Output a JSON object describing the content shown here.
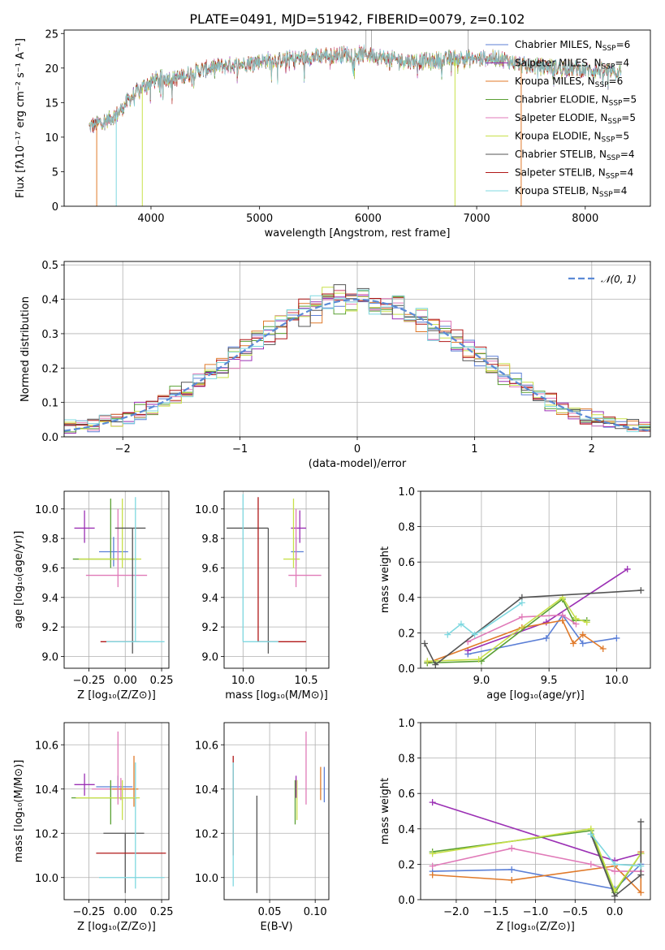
{
  "figure_title": "PLATE=0491, MJD=51942, FIBERID=0079, z=0.102",
  "colors": {
    "chabrier_miles": "#5b7fd6",
    "salpeter_miles": "#9b30b4",
    "kroupa_miles": "#e07a2a",
    "chabrier_elodie": "#5aa033",
    "salpeter_elodie": "#e07ab8",
    "kroupa_elodie": "#c8e04a",
    "chabrier_stelib": "#555555",
    "salpeter_stelib": "#b01818",
    "kroupa_stelib": "#7fd8e0",
    "grid": "#b0b0b0",
    "normal": "#5b8ad6"
  },
  "chart_data": [
    {
      "id": "spectrum",
      "type": "line",
      "title": "PLATE=0491, MJD=51942, FIBERID=0079, z=0.102",
      "xlabel": "wavelength [Angstrom, rest frame]",
      "ylabel": "Flux [fλ10⁻¹⁷ erg cm⁻² s⁻¹ A⁻¹]",
      "xlim": [
        3200,
        8600
      ],
      "ylim": [
        0,
        25.5
      ],
      "xticks": [
        4000,
        5000,
        6000,
        7000,
        8000
      ],
      "yticks": [
        0,
        5,
        10,
        15,
        20,
        25
      ],
      "grid": false,
      "legend_position": "right",
      "legend": [
        {
          "label": "Chabrier MILES, N",
          "sub": "SSP",
          "eq": "=6",
          "color_key": "chabrier_miles"
        },
        {
          "label": "Salpeter MILES, N",
          "sub": "SSP",
          "eq": "=4",
          "color_key": "salpeter_miles"
        },
        {
          "label": "Kroupa MILES, N",
          "sub": "SSP",
          "eq": "=6",
          "color_key": "kroupa_miles"
        },
        {
          "label": "Chabrier ELODIE, N",
          "sub": "SSP",
          "eq": "=5",
          "color_key": "chabrier_elodie"
        },
        {
          "label": "Salpeter ELODIE, N",
          "sub": "SSP",
          "eq": "=5",
          "color_key": "salpeter_elodie"
        },
        {
          "label": "Kroupa ELODIE, N",
          "sub": "SSP",
          "eq": "=5",
          "color_key": "kroupa_elodie"
        },
        {
          "label": "Chabrier STELIB, N",
          "sub": "SSP",
          "eq": "=4",
          "color_key": "chabrier_stelib"
        },
        {
          "label": "Salpeter STELIB, N",
          "sub": "SSP",
          "eq": "=4",
          "color_key": "salpeter_stelib"
        },
        {
          "label": "Kroupa STELIB, N",
          "sub": "SSP",
          "eq": "=4",
          "color_key": "kroupa_stelib"
        }
      ],
      "continuum": {
        "x": [
          3430,
          3600,
          3700,
          3800,
          3900,
          4000,
          4100,
          4200,
          4300,
          4400,
          4600,
          4800,
          5000,
          5200,
          5400,
          5600,
          5800,
          6000,
          6200,
          6400,
          6600,
          6800,
          7000,
          7200,
          7400,
          7600,
          7800,
          8000,
          8200,
          8330
        ],
        "y": [
          11.5,
          12.5,
          13.5,
          15.5,
          17.0,
          18.0,
          18.5,
          18.5,
          18.8,
          19.5,
          20.2,
          20.5,
          21.0,
          21.2,
          21.5,
          21.8,
          22.0,
          22.0,
          21.3,
          21.0,
          21.0,
          21.5,
          21.3,
          21.5,
          20.5,
          20.2,
          20.0,
          19.8,
          19.5,
          19.3
        ]
      },
      "dips": [
        {
          "x": 3680,
          "y": 0,
          "color_key": "kroupa_stelib"
        },
        {
          "x": 3500,
          "y": 0,
          "color_key": "kroupa_miles"
        },
        {
          "x": 3920,
          "y": 0,
          "color_key": "kroupa_elodie"
        },
        {
          "x": 6800,
          "y": 0,
          "color_key": "kroupa_elodie"
        },
        {
          "x": 7410,
          "y": 0,
          "color_key": "kroupa_miles"
        }
      ]
    },
    {
      "id": "residuals",
      "type": "histogram",
      "xlabel": "(data-model)/error",
      "ylabel": "Normed distribution",
      "xlim": [
        -2.5,
        2.5
      ],
      "ylim": [
        0,
        0.51
      ],
      "xticks": [
        -2,
        -1,
        0,
        1,
        2
      ],
      "yticks": [
        0.0,
        0.1,
        0.2,
        0.3,
        0.4,
        0.5
      ],
      "grid": true,
      "legend_position": "top-right",
      "normal_label": "𝒩(0, 1)",
      "bin_width": 0.1,
      "bins_start": -2.5
    },
    {
      "id": "age_vs_Z",
      "type": "errorbar",
      "xlabel_main": "Z [log",
      "xlabel_sub": "10",
      "xlabel_rest": "(Z/Z",
      "xlabel_end": ")]",
      "ylabel": "age  [log₁₀(age/yr)]",
      "xlim": [
        -0.42,
        0.3
      ],
      "ylim": [
        8.92,
        10.12
      ],
      "xticks": [
        -0.25,
        0.0,
        0.25
      ],
      "yticks": [
        9.0,
        9.2,
        9.4,
        9.6,
        9.8,
        10.0
      ],
      "grid": true,
      "points": [
        {
          "x": -0.28,
          "xerr": [
            0.07,
            0.07
          ],
          "y": 9.87,
          "yerr": [
            0.1,
            0.12
          ],
          "color_key": "salpeter_miles"
        },
        {
          "x": -0.08,
          "xerr": [
            0.1,
            0.1
          ],
          "y": 9.71,
          "yerr": [
            0.1,
            0.1
          ],
          "color_key": "chabrier_miles"
        },
        {
          "x": 0.05,
          "xerr": [
            0.22,
            0.05
          ],
          "y": 9.1,
          "yerr": [
            0.0,
            0.0
          ],
          "color_key": "salpeter_stelib"
        },
        {
          "x": -0.1,
          "xerr": [
            0.26,
            0.18
          ],
          "y": 9.66,
          "yerr": [
            0.06,
            0.41
          ],
          "color_key": "chabrier_elodie"
        },
        {
          "x": -0.02,
          "xerr": [
            0.3,
            0.13
          ],
          "y": 9.66,
          "yerr": [
            0.06,
            0.41
          ],
          "color_key": "kroupa_elodie"
        },
        {
          "x": -0.05,
          "xerr": [
            0.22,
            0.2
          ],
          "y": 9.55,
          "yerr": [
            0.08,
            0.45
          ],
          "color_key": "salpeter_elodie"
        },
        {
          "x": 0.05,
          "xerr": [
            0.12,
            0.09
          ],
          "y": 9.87,
          "yerr": [
            0.85,
            0.0
          ],
          "color_key": "chabrier_stelib"
        },
        {
          "x": 0.07,
          "xerr": [
            0.2,
            0.2
          ],
          "y": 9.1,
          "yerr": [
            0.0,
            0.98
          ],
          "color_key": "kroupa_stelib"
        }
      ]
    },
    {
      "id": "age_vs_mass",
      "type": "errorbar",
      "xlabel": "mass [log₁₀(M/M⊙)]",
      "xlim": [
        9.85,
        10.68
      ],
      "ylim": [
        8.92,
        10.12
      ],
      "xticks": [
        10.0,
        10.5
      ],
      "yticks": [
        9.0,
        9.2,
        9.4,
        9.6,
        9.8,
        10.0
      ],
      "grid": true,
      "points": [
        {
          "x": 10.45,
          "xerr": [
            0.07,
            0.05
          ],
          "y": 9.87,
          "yerr": [
            0.1,
            0.12
          ],
          "color_key": "salpeter_miles"
        },
        {
          "x": 10.42,
          "xerr": [
            0.04,
            0.06
          ],
          "y": 9.71,
          "yerr": [
            0.1,
            0.1
          ],
          "color_key": "chabrier_miles"
        },
        {
          "x": 10.4,
          "xerr": [
            0.08,
            0.05
          ],
          "y": 9.66,
          "yerr": [
            0.06,
            0.41
          ],
          "color_key": "kroupa_elodie"
        },
        {
          "x": 10.42,
          "xerr": [
            0.06,
            0.2
          ],
          "y": 9.55,
          "yerr": [
            0.08,
            0.45
          ],
          "color_key": "salpeter_elodie"
        },
        {
          "x": 10.2,
          "xerr": [
            0.33,
            0.0
          ],
          "y": 9.87,
          "yerr": [
            0.85,
            0.0
          ],
          "color_key": "chabrier_stelib"
        },
        {
          "x": 10.4,
          "xerr": [
            0.28,
            0.1
          ],
          "y": 9.1,
          "yerr": [
            0.0,
            0.0
          ],
          "color_key": "salpeter_stelib"
        },
        {
          "x": 10.12,
          "xerr": [
            0.0,
            0.0
          ],
          "y": 9.1,
          "yerr": [
            0.0,
            0.98
          ],
          "color_key": "salpeter_stelib"
        },
        {
          "x": 10.0,
          "xerr": [
            0.0,
            0.28
          ],
          "y": 9.1,
          "yerr": [
            0.0,
            1.0
          ],
          "color_key": "kroupa_stelib"
        }
      ]
    },
    {
      "id": "mass_weight_vs_age",
      "type": "line",
      "xlabel": "age  [log₁₀(age/yr)]",
      "ylabel": "mass weight",
      "xlim": [
        8.55,
        10.25
      ],
      "ylim": [
        0,
        1.0
      ],
      "xticks": [
        9.0,
        9.5,
        10.0
      ],
      "yticks": [
        0.0,
        0.2,
        0.4,
        0.6,
        0.8,
        1.0
      ],
      "grid": true,
      "series": [
        {
          "color_key": "chabrier_miles",
          "x": [
            8.9,
            9.48,
            9.6,
            9.75,
            10.0
          ],
          "y": [
            0.08,
            0.17,
            0.3,
            0.14,
            0.17
          ]
        },
        {
          "color_key": "salpeter_miles",
          "x": [
            8.9,
            9.48,
            10.08
          ],
          "y": [
            0.1,
            0.26,
            0.56
          ]
        },
        {
          "color_key": "kroupa_miles",
          "x": [
            8.6,
            9.3,
            9.6,
            9.68,
            9.75,
            9.9
          ],
          "y": [
            0.03,
            0.23,
            0.27,
            0.14,
            0.19,
            0.11
          ]
        },
        {
          "color_key": "chabrier_elodie",
          "x": [
            8.6,
            9.0,
            9.6,
            9.68,
            9.78
          ],
          "y": [
            0.03,
            0.04,
            0.39,
            0.27,
            0.27
          ]
        },
        {
          "color_key": "salpeter_elodie",
          "x": [
            8.9,
            9.3,
            9.6,
            9.7
          ],
          "y": [
            0.15,
            0.29,
            0.3,
            0.25
          ]
        },
        {
          "color_key": "kroupa_elodie",
          "x": [
            8.6,
            8.98,
            9.6,
            9.7,
            9.78
          ],
          "y": [
            0.04,
            0.05,
            0.4,
            0.28,
            0.26
          ]
        },
        {
          "color_key": "chabrier_stelib",
          "x": [
            8.58,
            8.66,
            9.3,
            10.18
          ],
          "y": [
            0.14,
            0.02,
            0.4,
            0.44
          ]
        },
        {
          "color_key": "kroupa_stelib",
          "x": [
            8.75,
            8.85,
            8.95,
            9.3
          ],
          "y": [
            0.19,
            0.25,
            0.19,
            0.37
          ]
        }
      ]
    },
    {
      "id": "mass_vs_Z",
      "type": "errorbar",
      "xlabel": "Z [log₁₀(Z/Z⊙)]",
      "ylabel": "mass [log₁₀(M/M⊙)]",
      "xlim": [
        -0.42,
        0.3
      ],
      "ylim": [
        9.9,
        10.7
      ],
      "xticks": [
        -0.25,
        0.0,
        0.25
      ],
      "yticks": [
        10.0,
        10.2,
        10.4,
        10.6
      ],
      "grid": true,
      "points": [
        {
          "x": -0.28,
          "xerr": [
            0.07,
            0.07
          ],
          "y": 10.42,
          "yerr": [
            0.05,
            0.05
          ],
          "color_key": "salpeter_miles"
        },
        {
          "x": -0.05,
          "xerr": [
            0.15,
            0.1
          ],
          "y": 10.41,
          "yerr": [
            0.05,
            0.05
          ],
          "color_key": "chabrier_miles"
        },
        {
          "x": -0.03,
          "xerr": [
            0.2,
            0.08
          ],
          "y": 10.4,
          "yerr": [
            0.05,
            0.05
          ],
          "color_key": "salpeter_elodie"
        },
        {
          "x": 0.06,
          "xerr": [
            0.15,
            0.03
          ],
          "y": 10.4,
          "yerr": [
            0.08,
            0.15
          ],
          "color_key": "kroupa_miles"
        },
        {
          "x": -0.1,
          "xerr": [
            0.27,
            0.18
          ],
          "y": 10.36,
          "yerr": [
            0.12,
            0.08
          ],
          "color_key": "chabrier_elodie"
        },
        {
          "x": -0.02,
          "xerr": [
            0.32,
            0.12
          ],
          "y": 10.36,
          "yerr": [
            0.1,
            0.08
          ],
          "color_key": "kroupa_elodie"
        },
        {
          "x": 0.0,
          "xerr": [
            0.15,
            0.13
          ],
          "y": 10.2,
          "yerr": [
            0.27,
            0.0
          ],
          "color_key": "chabrier_stelib"
        },
        {
          "x": 0.1,
          "xerr": [
            0.3,
            0.18
          ],
          "y": 10.11,
          "yerr": [
            0.0,
            0.0
          ],
          "color_key": "salpeter_stelib"
        },
        {
          "x": 0.07,
          "xerr": [
            0.25,
            0.2
          ],
          "y": 10.0,
          "yerr": [
            0.05,
            0.52
          ],
          "color_key": "kroupa_stelib"
        },
        {
          "x": -0.05,
          "xerr": [
            0.0,
            0.0
          ],
          "y": 10.45,
          "yerr": [
            0.12,
            0.21
          ],
          "color_key": "salpeter_elodie"
        }
      ]
    },
    {
      "id": "mass_vs_ebv",
      "type": "errorbar",
      "xlabel": "E(B-V)",
      "xlim": [
        0.0,
        0.115
      ],
      "ylim": [
        9.9,
        10.7
      ],
      "xticks": [
        0.05,
        0.1
      ],
      "yticks": [
        10.0,
        10.2,
        10.4,
        10.6
      ],
      "grid": true,
      "points": [
        {
          "x": 0.01,
          "yerr": [
            0.0,
            0.0
          ],
          "y": 10.35,
          "yerr2": [
            0.25,
            0.2
          ],
          "color_key": "salpeter_stelib"
        },
        {
          "x": 0.01,
          "y": 10.3,
          "yerr2": [
            0.34,
            0.22
          ],
          "color_key": "kroupa_stelib"
        },
        {
          "x": 0.036,
          "y": 10.15,
          "yerr2": [
            0.22,
            0.22
          ],
          "color_key": "chabrier_stelib"
        },
        {
          "x": 0.078,
          "y": 10.36,
          "yerr2": [
            0.12,
            0.08
          ],
          "color_key": "chabrier_elodie"
        },
        {
          "x": 0.08,
          "y": 10.36,
          "yerr2": [
            0.1,
            0.08
          ],
          "color_key": "kroupa_elodie"
        },
        {
          "x": 0.079,
          "y": 10.41,
          "yerr2": [
            0.05,
            0.05
          ],
          "color_key": "salpeter_miles"
        },
        {
          "x": 0.09,
          "y": 10.45,
          "yerr2": [
            0.12,
            0.21
          ],
          "color_key": "salpeter_elodie"
        },
        {
          "x": 0.106,
          "y": 10.4,
          "yerr2": [
            0.05,
            0.1
          ],
          "color_key": "kroupa_miles"
        },
        {
          "x": 0.11,
          "y": 10.42,
          "yerr2": [
            0.08,
            0.08
          ],
          "color_key": "chabrier_miles"
        }
      ]
    },
    {
      "id": "mass_weight_vs_Z",
      "type": "line",
      "xlabel": "Z [log₁₀(Z/Z⊙)]",
      "ylabel": "mass weight",
      "xlim": [
        -2.45,
        0.45
      ],
      "ylim": [
        0,
        1.0
      ],
      "xticks": [
        -2.0,
        -1.5,
        -1.0,
        -0.5,
        0.0
      ],
      "yticks": [
        0.0,
        0.2,
        0.4,
        0.6,
        0.8,
        1.0
      ],
      "grid": true,
      "series": [
        {
          "color_key": "chabrier_miles",
          "x": [
            -2.3,
            -1.3,
            0.0,
            0.33
          ],
          "y": [
            0.16,
            0.17,
            0.06,
            0.2
          ]
        },
        {
          "color_key": "salpeter_miles",
          "x": [
            -2.3,
            0.0,
            0.33
          ],
          "y": [
            0.55,
            0.22,
            0.26
          ]
        },
        {
          "color_key": "kroupa_miles",
          "x": [
            -2.3,
            -1.3,
            0.0,
            0.33,
            0.33
          ],
          "y": [
            0.14,
            0.11,
            0.19,
            0.04,
            0.27
          ]
        },
        {
          "color_key": "chabrier_elodie",
          "x": [
            -2.3,
            -0.3,
            0.0,
            0.33
          ],
          "y": [
            0.27,
            0.39,
            0.04,
            0.26
          ]
        },
        {
          "color_key": "salpeter_elodie",
          "x": [
            -2.3,
            -1.3,
            -0.3,
            0.0,
            0.33
          ],
          "y": [
            0.19,
            0.29,
            0.2,
            0.16,
            0.16
          ]
        },
        {
          "color_key": "kroupa_elodie",
          "x": [
            -2.3,
            -0.3,
            0.0,
            0.33
          ],
          "y": [
            0.26,
            0.4,
            0.05,
            0.26
          ]
        },
        {
          "color_key": "chabrier_stelib",
          "x": [
            -0.3,
            0.0,
            0.33,
            0.33
          ],
          "y": [
            0.37,
            0.02,
            0.14,
            0.44
          ]
        },
        {
          "color_key": "kroupa_stelib",
          "x": [
            -0.3,
            0.0,
            0.33
          ],
          "y": [
            0.37,
            0.2,
            0.19
          ]
        }
      ]
    }
  ]
}
